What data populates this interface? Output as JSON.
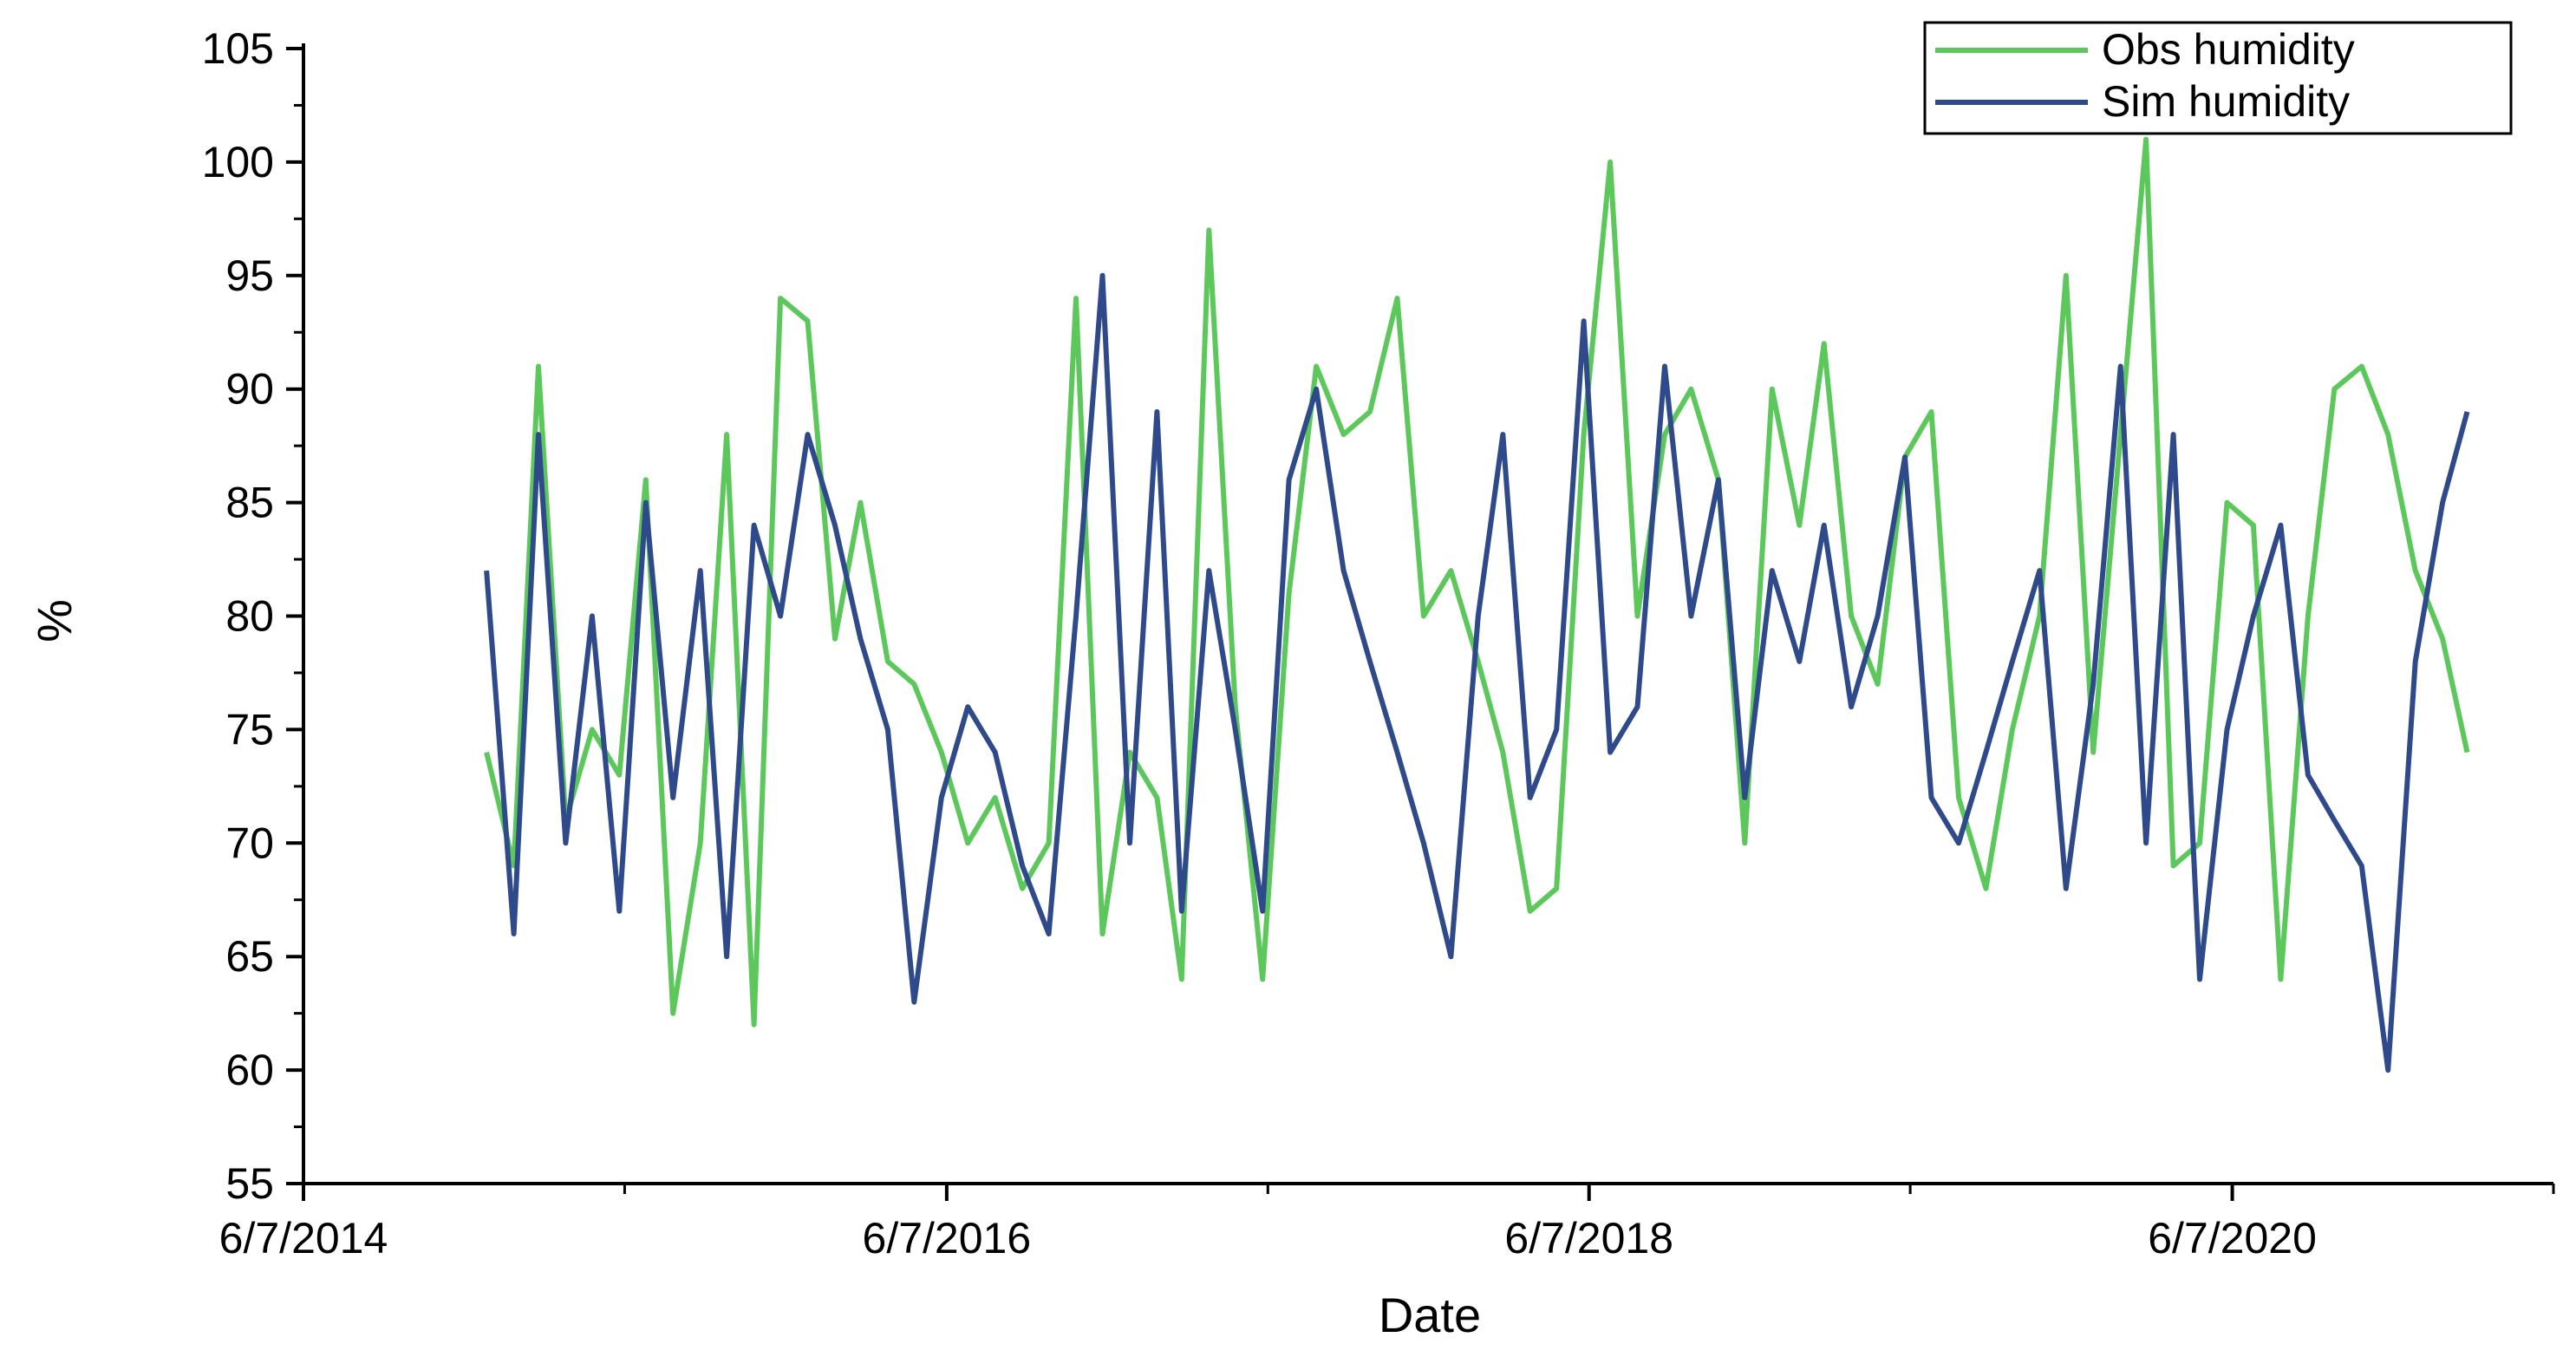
{
  "chart_data": {
    "type": "line",
    "xlabel": "Date",
    "ylabel": "%",
    "ylim": [
      55,
      105
    ],
    "y_ticks": [
      55,
      60,
      65,
      70,
      75,
      80,
      85,
      90,
      95,
      100,
      105
    ],
    "x_range": [
      "2014-06-07",
      "2021-06-07"
    ],
    "x_ticks": [
      "6/7/2014",
      "6/7/2016",
      "6/7/2018",
      "6/7/2020"
    ],
    "x_ticks_iso": [
      "2014-06-07",
      "2016-06-07",
      "2018-06-07",
      "2020-06-07"
    ],
    "x_minor_ticks_iso": [
      "2015-06-07",
      "2017-06-07",
      "2019-06-07",
      "2021-06-07"
    ],
    "grid": false,
    "legend_position": "top-right",
    "legend": [
      "Obs humidity",
      "Sim humidity"
    ],
    "series": [
      {
        "name": "Obs humidity",
        "color": "#5cc85c",
        "x": [
          "2015-01-01",
          "2015-02-01",
          "2015-03-01",
          "2015-04-01",
          "2015-05-01",
          "2015-06-01",
          "2015-07-01",
          "2015-08-01",
          "2015-09-01",
          "2015-10-01",
          "2015-11-01",
          "2015-12-01",
          "2016-01-01",
          "2016-02-01",
          "2016-03-01",
          "2016-04-01",
          "2016-05-01",
          "2016-06-01",
          "2016-07-01",
          "2016-08-01",
          "2016-09-01",
          "2016-10-01",
          "2016-11-01",
          "2016-12-01",
          "2017-01-01",
          "2017-02-01",
          "2017-03-01",
          "2017-04-01",
          "2017-05-01",
          "2017-06-01",
          "2017-07-01",
          "2017-08-01",
          "2017-09-01",
          "2017-10-01",
          "2017-11-01",
          "2017-12-01",
          "2018-01-01",
          "2018-02-01",
          "2018-03-01",
          "2018-04-01",
          "2018-05-01",
          "2018-06-01",
          "2018-07-01",
          "2018-08-01",
          "2018-09-01",
          "2018-10-01",
          "2018-11-01",
          "2018-12-01",
          "2019-01-01",
          "2019-02-01",
          "2019-03-01",
          "2019-04-01",
          "2019-05-01",
          "2019-06-01",
          "2019-07-01",
          "2019-08-01",
          "2019-09-01",
          "2019-10-01",
          "2019-11-01",
          "2019-12-01",
          "2020-01-01",
          "2020-02-01",
          "2020-03-01",
          "2020-04-01",
          "2020-05-01",
          "2020-06-01",
          "2020-07-01",
          "2020-08-01",
          "2020-09-01",
          "2020-10-01",
          "2020-11-01",
          "2020-12-01",
          "2021-01-01",
          "2021-02-01",
          "2021-03-01"
        ],
        "values": [
          74,
          69,
          91,
          71,
          75,
          73,
          86,
          62.5,
          70,
          88,
          62,
          94,
          93,
          79,
          85,
          78,
          77,
          74,
          70,
          72,
          68,
          70,
          94,
          66,
          74,
          72,
          64,
          97,
          76,
          64,
          81,
          91,
          88,
          89,
          94,
          80,
          82,
          78,
          74,
          67,
          68,
          88,
          100,
          80,
          88,
          90,
          86,
          70,
          90,
          84,
          92,
          80,
          77,
          87,
          89,
          72,
          68,
          75,
          80,
          95,
          74,
          88,
          101,
          69,
          70,
          85,
          84,
          64,
          80,
          90,
          91,
          88,
          82,
          79,
          74
        ]
      },
      {
        "name": "Sim humidity",
        "color": "#2f4a8a",
        "x": [
          "2015-01-01",
          "2015-02-01",
          "2015-03-01",
          "2015-04-01",
          "2015-05-01",
          "2015-06-01",
          "2015-07-01",
          "2015-08-01",
          "2015-09-01",
          "2015-10-01",
          "2015-11-01",
          "2015-12-01",
          "2016-01-01",
          "2016-02-01",
          "2016-03-01",
          "2016-04-01",
          "2016-05-01",
          "2016-06-01",
          "2016-07-01",
          "2016-08-01",
          "2016-09-01",
          "2016-10-01",
          "2016-11-01",
          "2016-12-01",
          "2017-01-01",
          "2017-02-01",
          "2017-03-01",
          "2017-04-01",
          "2017-05-01",
          "2017-06-01",
          "2017-07-01",
          "2017-08-01",
          "2017-09-01",
          "2017-10-01",
          "2017-11-01",
          "2017-12-01",
          "2018-01-01",
          "2018-02-01",
          "2018-03-01",
          "2018-04-01",
          "2018-05-01",
          "2018-06-01",
          "2018-07-01",
          "2018-08-01",
          "2018-09-01",
          "2018-10-01",
          "2018-11-01",
          "2018-12-01",
          "2019-01-01",
          "2019-02-01",
          "2019-03-01",
          "2019-04-01",
          "2019-05-01",
          "2019-06-01",
          "2019-07-01",
          "2019-08-01",
          "2019-09-01",
          "2019-10-01",
          "2019-11-01",
          "2019-12-01",
          "2020-01-01",
          "2020-02-01",
          "2020-03-01",
          "2020-04-01",
          "2020-05-01",
          "2020-06-01",
          "2020-07-01",
          "2020-08-01",
          "2020-09-01",
          "2020-10-01",
          "2020-11-01",
          "2020-12-01",
          "2021-01-01",
          "2021-02-01",
          "2021-03-01"
        ],
        "values": [
          82,
          66,
          88,
          70,
          80,
          67,
          85,
          72,
          82,
          65,
          84,
          80,
          88,
          84,
          79,
          75,
          63,
          72,
          76,
          74,
          69,
          66,
          80,
          95,
          70,
          89,
          67,
          82,
          75,
          67,
          86,
          90,
          82,
          78,
          74,
          70,
          65,
          80,
          88,
          72,
          75,
          93,
          74,
          76,
          91,
          80,
          86,
          72,
          82,
          78,
          84,
          76,
          80,
          87,
          72,
          70,
          74,
          78,
          82,
          68,
          77,
          91,
          70,
          88,
          64,
          75,
          80,
          84,
          73,
          71,
          69,
          60,
          78,
          85,
          89
        ]
      }
    ]
  }
}
